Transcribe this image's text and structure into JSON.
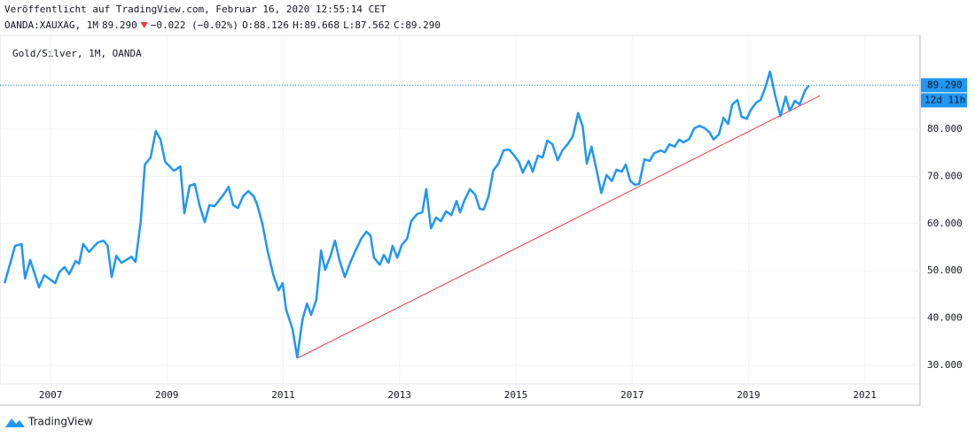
{
  "header": {
    "published": "Veröffentlicht auf TradingView.com, Februar 16, 2020 12:55:14 CET",
    "symbol": "OANDA:XAUXAG, 1M",
    "price": "89.290",
    "change": "−0.022 (−0.02%)",
    "ohlc": [
      {
        "label": "O:",
        "value": "88.126"
      },
      {
        "label": "H:",
        "value": "89.668"
      },
      {
        "label": "L:",
        "value": "87.562"
      },
      {
        "label": "C:",
        "value": "89.290"
      }
    ]
  },
  "footer": {
    "brand": "TradingView"
  },
  "chart_data": {
    "type": "line",
    "x": [
      2006.21,
      2006.39,
      2006.5,
      2006.56,
      2006.65,
      2006.8,
      2006.89,
      2007.08,
      2007.15,
      2007.24,
      2007.32,
      2007.43,
      2007.49,
      2007.56,
      2007.66,
      2007.81,
      2007.91,
      2007.98,
      2008.05,
      2008.13,
      2008.22,
      2008.39,
      2008.46,
      2008.55,
      2008.62,
      2008.72,
      2008.81,
      2008.89,
      2008.97,
      2009.12,
      2009.23,
      2009.3,
      2009.39,
      2009.48,
      2009.56,
      2009.65,
      2009.73,
      2009.82,
      2009.97,
      2010.06,
      2010.14,
      2010.22,
      2010.31,
      2010.4,
      2010.49,
      2010.55,
      2010.64,
      2010.73,
      2010.83,
      2010.92,
      2010.99,
      2011.05,
      2011.16,
      2011.24,
      2011.33,
      2011.41,
      2011.48,
      2011.57,
      2011.65,
      2011.72,
      2011.82,
      2011.89,
      2011.97,
      2012.06,
      2012.15,
      2012.24,
      2012.34,
      2012.43,
      2012.5,
      2012.56,
      2012.66,
      2012.73,
      2012.81,
      2012.88,
      2012.96,
      2013.04,
      2013.13,
      2013.2,
      2013.3,
      2013.39,
      2013.46,
      2013.54,
      2013.63,
      2013.71,
      2013.8,
      2013.89,
      2013.98,
      2014.04,
      2014.12,
      2014.21,
      2014.3,
      2014.38,
      2014.45,
      2014.53,
      2014.61,
      2014.7,
      2014.79,
      2014.88,
      2014.96,
      2015.05,
      2015.12,
      2015.22,
      2015.29,
      2015.38,
      2015.46,
      2015.54,
      2015.63,
      2015.72,
      2015.8,
      2015.89,
      2015.98,
      2016.07,
      2016.15,
      2016.22,
      2016.3,
      2016.39,
      2016.47,
      2016.56,
      2016.65,
      2016.73,
      2016.82,
      2016.89,
      2016.97,
      2017.05,
      2017.12,
      2017.21,
      2017.3,
      2017.38,
      2017.49,
      2017.56,
      2017.64,
      2017.73,
      2017.81,
      2017.88,
      2017.98,
      2018.07,
      2018.16,
      2018.25,
      2018.33,
      2018.4,
      2018.49,
      2018.57,
      2018.65,
      2018.72,
      2018.81,
      2018.88,
      2018.97,
      2019.04,
      2019.13,
      2019.21,
      2019.3,
      2019.37,
      2019.46,
      2019.55,
      2019.64,
      2019.71,
      2019.8,
      2019.88,
      2019.97,
      2020.04
    ],
    "series": [
      {
        "name": "Gold/Silver, 1M, OANDA",
        "color": "#2196f3",
        "values": [
          47.4,
          55.3,
          55.7,
          48.4,
          52.3,
          46.5,
          49.1,
          47.4,
          49.7,
          50.8,
          49.3,
          52.1,
          51.5,
          55.7,
          54.0,
          56.0,
          56.4,
          55.3,
          48.7,
          53.2,
          51.7,
          53.0,
          51.9,
          60.5,
          72.5,
          74.0,
          79.6,
          77.8,
          73.1,
          71.2,
          72.1,
          62.2,
          68.0,
          68.4,
          63.9,
          60.3,
          63.9,
          63.7,
          66.1,
          67.8,
          63.9,
          63.3,
          65.8,
          66.9,
          65.8,
          64.1,
          60.1,
          54.3,
          49.1,
          45.9,
          47.4,
          41.8,
          37.7,
          31.7,
          39.6,
          43.1,
          40.7,
          43.9,
          54.3,
          50.2,
          53.4,
          56.4,
          52.1,
          48.7,
          51.7,
          54.2,
          56.8,
          58.3,
          57.5,
          52.8,
          51.3,
          53.4,
          51.7,
          55.3,
          52.8,
          55.5,
          56.8,
          60.5,
          62.0,
          62.4,
          67.3,
          59.0,
          61.3,
          60.5,
          62.6,
          61.8,
          64.8,
          62.4,
          65.0,
          67.3,
          66.1,
          63.1,
          63.0,
          65.8,
          71.2,
          72.7,
          75.5,
          75.7,
          74.6,
          73.1,
          70.8,
          73.3,
          71.0,
          74.4,
          74.0,
          77.6,
          76.8,
          73.4,
          75.5,
          76.8,
          78.5,
          83.4,
          80.6,
          72.7,
          76.3,
          71.2,
          66.5,
          70.3,
          69.0,
          71.4,
          71.0,
          72.5,
          69.0,
          68.2,
          68.4,
          73.6,
          73.3,
          74.9,
          75.5,
          75.1,
          76.8,
          76.3,
          77.8,
          77.2,
          77.9,
          80.2,
          80.7,
          80.2,
          79.3,
          77.8,
          78.9,
          82.4,
          81.1,
          85.2,
          86.2,
          82.6,
          82.2,
          84.1,
          85.6,
          86.2,
          89.2,
          92.2,
          87.1,
          82.8,
          86.9,
          83.9,
          86.0,
          85.2,
          88.1,
          89.29
        ]
      }
    ],
    "trendline": {
      "color": "#f23645",
      "x": [
        2011.24,
        2020.23
      ],
      "y": [
        31.5,
        87.1
      ]
    },
    "last_price": {
      "value": 89.29,
      "label": "89.290"
    },
    "countdown": "12d 11h",
    "xlim": [
      2006.13,
      2021.95
    ],
    "xticks": [
      2007,
      2009,
      2011,
      2013,
      2015,
      2017,
      2019,
      2021
    ],
    "ylim": [
      26.07,
      99.85
    ],
    "yticks": [
      {
        "value": 30,
        "label": "30.000"
      },
      {
        "value": 40,
        "label": "40.000"
      },
      {
        "value": 50,
        "label": "50.000"
      },
      {
        "value": 60,
        "label": "60.000"
      },
      {
        "value": 70,
        "label": "70.000"
      },
      {
        "value": 80,
        "label": "80.000"
      }
    ],
    "grid": true
  }
}
